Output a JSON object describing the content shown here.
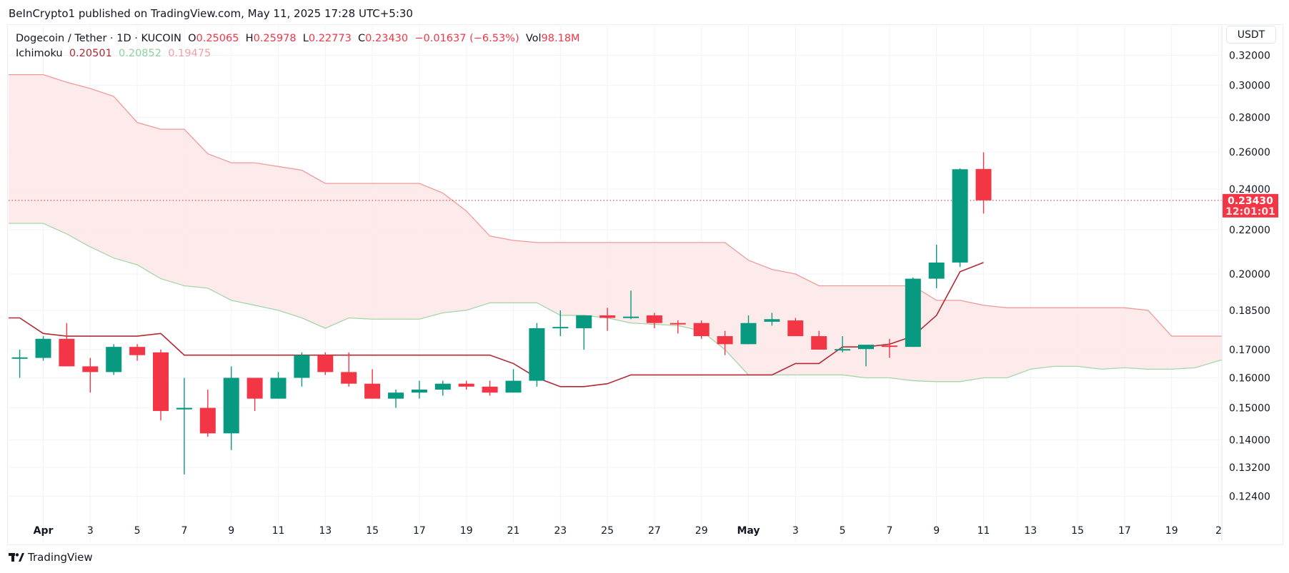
{
  "publisher": "BeInCrypto1 published on TradingView.com, May 11, 2025 17:28 UTC+5:30",
  "legend": {
    "symbol": "Dogecoin / Tether · 1D · KUCOIN",
    "o_label": "O",
    "o": "0.25065",
    "h_label": "H",
    "h": "0.25978",
    "l_label": "L",
    "l": "0.22773",
    "c_label": "C",
    "c": "0.23430",
    "change": "−0.01637 (−6.53%)",
    "vol_label": "Vol",
    "vol": "98.18M",
    "indicator": "Ichimoku",
    "ich_values": [
      "0.20501",
      "0.20852",
      "0.19475"
    ]
  },
  "currency_button": "USDT",
  "footer_brand": "TradingView",
  "colors": {
    "up": "#089981",
    "down": "#f23645",
    "conversion": "#b22833",
    "leadA": "#a5d6a7",
    "leadB": "#ef9a9a",
    "cloud": "#fde8e8"
  },
  "chart_data": {
    "type": "candlestick",
    "title": "Dogecoin / Tether · 1D · KUCOIN",
    "y_scale": "log",
    "ylim": [
      0.118,
      0.335
    ],
    "y_ticks": [
      "0.32000",
      "0.30000",
      "0.28000",
      "0.26000",
      "0.24000",
      "0.22000",
      "0.20000",
      "0.18500",
      "0.17000",
      "0.16000",
      "0.15000",
      "0.14000",
      "0.13200",
      "0.12400"
    ],
    "x_ticks": [
      {
        "day": 1,
        "label": "Apr"
      },
      {
        "day": 3,
        "label": "3"
      },
      {
        "day": 5,
        "label": "5"
      },
      {
        "day": 7,
        "label": "7"
      },
      {
        "day": 9,
        "label": "9"
      },
      {
        "day": 11,
        "label": "11"
      },
      {
        "day": 13,
        "label": "13"
      },
      {
        "day": 15,
        "label": "15"
      },
      {
        "day": 17,
        "label": "17"
      },
      {
        "day": 19,
        "label": "19"
      },
      {
        "day": 21,
        "label": "21"
      },
      {
        "day": 23,
        "label": "23"
      },
      {
        "day": 25,
        "label": "25"
      },
      {
        "day": 27,
        "label": "27"
      },
      {
        "day": 29,
        "label": "29"
      },
      {
        "day": 31,
        "label": "May"
      },
      {
        "day": 33,
        "label": "3"
      },
      {
        "day": 35,
        "label": "5"
      },
      {
        "day": 37,
        "label": "7"
      },
      {
        "day": 39,
        "label": "9"
      },
      {
        "day": 41,
        "label": "11"
      },
      {
        "day": 43,
        "label": "13"
      },
      {
        "day": 45,
        "label": "15"
      },
      {
        "day": 47,
        "label": "17"
      },
      {
        "day": 49,
        "label": "19"
      },
      {
        "day": 51,
        "label": "2"
      }
    ],
    "start_date": "Mar 31",
    "candles_ohlc": [
      [
        0.167,
        0.17,
        0.16,
        0.1672
      ],
      [
        0.167,
        0.175,
        0.166,
        0.174
      ],
      [
        0.174,
        0.18,
        0.164,
        0.164
      ],
      [
        0.164,
        0.167,
        0.155,
        0.162
      ],
      [
        0.162,
        0.172,
        0.161,
        0.171
      ],
      [
        0.171,
        0.172,
        0.166,
        0.168
      ],
      [
        0.169,
        0.17,
        0.146,
        0.149
      ],
      [
        0.1495,
        0.16,
        0.13,
        0.15
      ],
      [
        0.15,
        0.156,
        0.141,
        0.142
      ],
      [
        0.142,
        0.164,
        0.137,
        0.16
      ],
      [
        0.16,
        0.16,
        0.149,
        0.153
      ],
      [
        0.153,
        0.162,
        0.153,
        0.16
      ],
      [
        0.16,
        0.169,
        0.157,
        0.168
      ],
      [
        0.168,
        0.169,
        0.161,
        0.162
      ],
      [
        0.162,
        0.169,
        0.157,
        0.158
      ],
      [
        0.158,
        0.163,
        0.153,
        0.153
      ],
      [
        0.153,
        0.156,
        0.15,
        0.155
      ],
      [
        0.155,
        0.159,
        0.153,
        0.156
      ],
      [
        0.156,
        0.159,
        0.154,
        0.158
      ],
      [
        0.158,
        0.159,
        0.156,
        0.157
      ],
      [
        0.157,
        0.159,
        0.154,
        0.155
      ],
      [
        0.155,
        0.163,
        0.155,
        0.159
      ],
      [
        0.159,
        0.18,
        0.157,
        0.178
      ],
      [
        0.178,
        0.185,
        0.175,
        0.1785
      ],
      [
        0.178,
        0.183,
        0.17,
        0.183
      ],
      [
        0.183,
        0.186,
        0.177,
        0.182
      ],
      [
        0.1822,
        0.193,
        0.1815,
        0.1825
      ],
      [
        0.183,
        0.184,
        0.178,
        0.18
      ],
      [
        0.18,
        0.181,
        0.176,
        0.1795
      ],
      [
        0.18,
        0.181,
        0.174,
        0.175
      ],
      [
        0.175,
        0.177,
        0.168,
        0.172
      ],
      [
        0.172,
        0.183,
        0.172,
        0.18
      ],
      [
        0.1805,
        0.184,
        0.179,
        0.1815
      ],
      [
        0.181,
        0.182,
        0.175,
        0.175
      ],
      [
        0.175,
        0.177,
        0.17,
        0.17
      ],
      [
        0.17,
        0.175,
        0.169,
        0.1702
      ],
      [
        0.1702,
        0.171,
        0.164,
        0.1718
      ],
      [
        0.1715,
        0.174,
        0.167,
        0.171
      ],
      [
        0.171,
        0.1985,
        0.171,
        0.198
      ],
      [
        0.198,
        0.213,
        0.194,
        0.205
      ],
      [
        0.205,
        0.251,
        0.203,
        0.2505
      ],
      [
        0.25065,
        0.25978,
        0.22773,
        0.2343
      ]
    ],
    "conversion_line": [
      0.182,
      0.176,
      0.175,
      0.175,
      0.175,
      0.175,
      0.176,
      0.168,
      0.168,
      0.168,
      0.168,
      0.168,
      0.168,
      0.168,
      0.168,
      0.168,
      0.168,
      0.168,
      0.168,
      0.168,
      0.168,
      0.165,
      0.16,
      0.157,
      0.157,
      0.158,
      0.161,
      0.161,
      0.161,
      0.161,
      0.161,
      0.161,
      0.161,
      0.165,
      0.165,
      0.171,
      0.171,
      0.172,
      0.175,
      0.183,
      0.201,
      0.205
    ],
    "lead_a": [
      0.223,
      0.223,
      0.218,
      0.212,
      0.207,
      0.204,
      0.198,
      0.195,
      0.194,
      0.189,
      0.187,
      0.185,
      0.182,
      0.178,
      0.182,
      0.1815,
      0.1815,
      0.1815,
      0.184,
      0.185,
      0.188,
      0.188,
      0.188,
      0.183,
      0.183,
      0.182,
      0.18,
      0.1795,
      0.179,
      0.177,
      0.17,
      0.161,
      0.161,
      0.161,
      0.161,
      0.161,
      0.16,
      0.16,
      0.159,
      0.1587,
      0.1587,
      0.16,
      0.16,
      0.163,
      0.164,
      0.164,
      0.163,
      0.1635,
      0.163,
      0.163,
      0.1635,
      0.166,
      0.168
    ],
    "lead_b": [
      0.307,
      0.307,
      0.302,
      0.298,
      0.293,
      0.277,
      0.273,
      0.273,
      0.259,
      0.254,
      0.254,
      0.252,
      0.25,
      0.243,
      0.243,
      0.243,
      0.243,
      0.243,
      0.238,
      0.229,
      0.217,
      0.215,
      0.214,
      0.214,
      0.214,
      0.214,
      0.214,
      0.214,
      0.214,
      0.214,
      0.214,
      0.206,
      0.202,
      0.2,
      0.195,
      0.195,
      0.195,
      0.195,
      0.195,
      0.189,
      0.189,
      0.187,
      0.186,
      0.186,
      0.186,
      0.186,
      0.186,
      0.186,
      0.185,
      0.175,
      0.175,
      0.175,
      0.175
    ],
    "last_price": 0.2343,
    "last_price_label": "0.23430",
    "countdown": "12:01:01"
  }
}
